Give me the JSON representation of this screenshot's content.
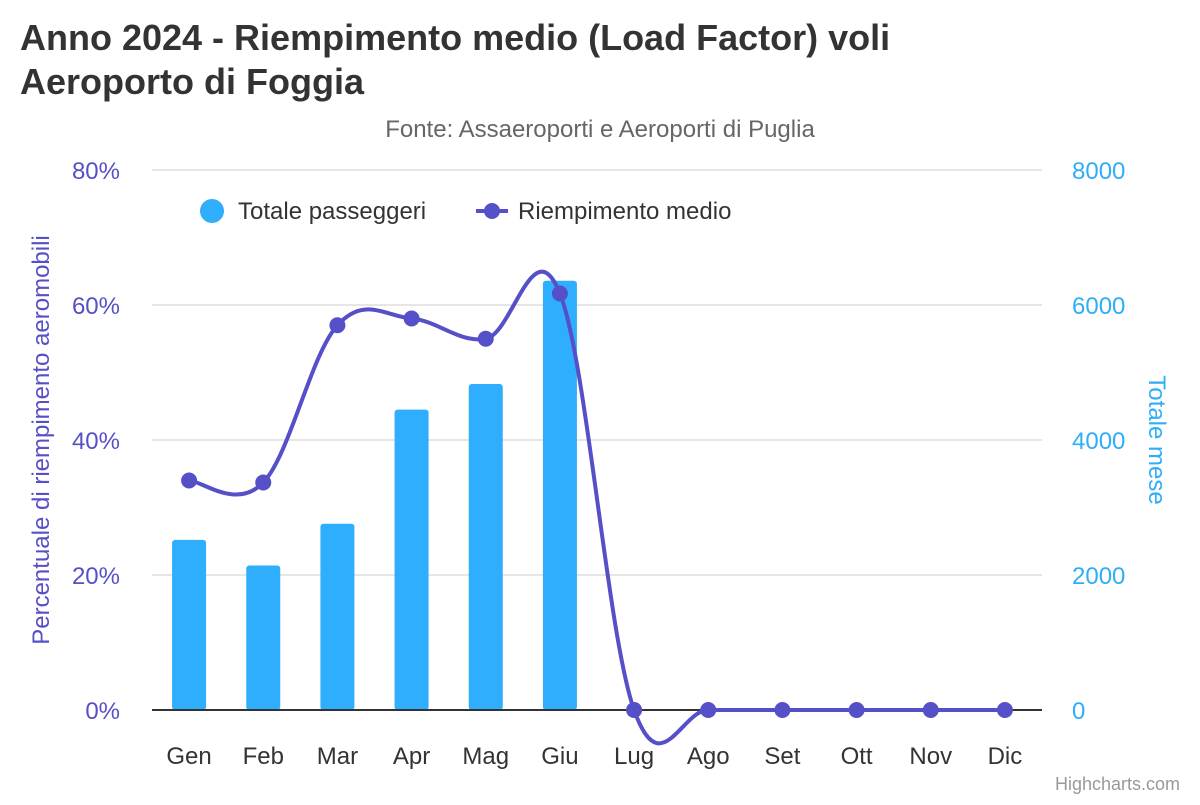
{
  "chart_data": {
    "type": "bar",
    "title": "Anno 2024 - Riempimento medio (Load Factor) voli",
    "title_line2": "Aeroporto di Foggia",
    "subtitle": "Fonte: Assaeroporti e Aeroporti di Puglia",
    "categories": [
      "Gen",
      "Feb",
      "Mar",
      "Apr",
      "Mag",
      "Giu",
      "Lug",
      "Ago",
      "Set",
      "Ott",
      "Nov",
      "Dic"
    ],
    "series": [
      {
        "name": "Totale passeggeri",
        "type": "bar",
        "axis": "right",
        "color": "#2eaefc",
        "values": [
          2520,
          2140,
          2760,
          4450,
          4830,
          6360,
          0,
          0,
          0,
          0,
          0,
          0
        ]
      },
      {
        "name": "Riempimento medio",
        "type": "line",
        "axis": "left",
        "color": "#5650c8",
        "values": [
          34.0,
          33.7,
          57.0,
          58.0,
          55.0,
          61.7,
          0,
          0,
          0,
          0,
          0,
          0
        ]
      }
    ],
    "y_left": {
      "label": "Percentuale di riempimento aeromobili",
      "ylim": [
        0,
        80
      ],
      "ticks": [
        "0%",
        "20%",
        "40%",
        "60%",
        "80%"
      ],
      "color": "#5650c8"
    },
    "y_right": {
      "label": "Totale mese",
      "ylim": [
        0,
        8000
      ],
      "ticks": [
        "0",
        "2000",
        "4000",
        "6000",
        "8000"
      ],
      "color": "#2eaef8"
    },
    "grid": true,
    "legend_position": "top-left"
  },
  "credits": "Highcharts.com"
}
